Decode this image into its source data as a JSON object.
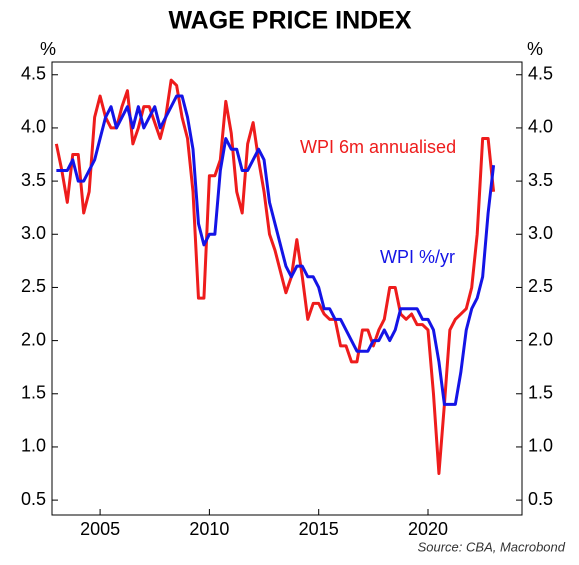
{
  "chart_data": {
    "type": "line",
    "title": "WAGE PRICE INDEX",
    "y_unit_left": "%",
    "y_unit_right": "%",
    "source": "Source: CBA, Macrobond",
    "annotations": [
      "WPI 6m annualised",
      "WPI %/yr"
    ],
    "x": [
      2003,
      2003.25,
      2003.5,
      2003.75,
      2004,
      2004.25,
      2004.5,
      2004.75,
      2005,
      2005.25,
      2005.5,
      2005.75,
      2006,
      2006.25,
      2006.5,
      2006.75,
      2007,
      2007.25,
      2007.5,
      2007.75,
      2008,
      2008.25,
      2008.5,
      2008.75,
      2009,
      2009.25,
      2009.5,
      2009.75,
      2010,
      2010.25,
      2010.5,
      2010.75,
      2011,
      2011.25,
      2011.5,
      2011.75,
      2012,
      2012.25,
      2012.5,
      2012.75,
      2013,
      2013.25,
      2013.5,
      2013.75,
      2014,
      2014.25,
      2014.5,
      2014.75,
      2015,
      2015.25,
      2015.5,
      2015.75,
      2016,
      2016.25,
      2016.5,
      2016.75,
      2017,
      2017.25,
      2017.5,
      2017.75,
      2018,
      2018.25,
      2018.5,
      2018.75,
      2019,
      2019.25,
      2019.5,
      2019.75,
      2020,
      2020.25,
      2020.5,
      2020.75,
      2021,
      2021.25,
      2021.5,
      2021.75,
      2022,
      2022.25,
      2022.5,
      2022.75,
      2023
    ],
    "series": [
      {
        "name": "WPI 6m annualised",
        "color": "#ee1c1c",
        "values": [
          3.85,
          3.6,
          3.3,
          3.75,
          3.75,
          3.2,
          3.4,
          4.1,
          4.3,
          4.1,
          4.0,
          4.0,
          4.2,
          4.35,
          3.85,
          4.0,
          4.2,
          4.2,
          4.05,
          3.9,
          4.1,
          4.45,
          4.4,
          4.1,
          3.9,
          3.4,
          2.4,
          2.4,
          3.55,
          3.55,
          3.7,
          4.25,
          3.95,
          3.4,
          3.2,
          3.85,
          4.05,
          3.7,
          3.4,
          3.0,
          2.85,
          2.65,
          2.45,
          2.6,
          2.95,
          2.6,
          2.2,
          2.35,
          2.35,
          2.25,
          2.2,
          2.2,
          1.95,
          1.95,
          1.8,
          1.8,
          2.1,
          2.1,
          1.95,
          2.1,
          2.2,
          2.5,
          2.5,
          2.25,
          2.2,
          2.25,
          2.15,
          2.15,
          2.1,
          1.5,
          0.75,
          1.4,
          2.1,
          2.2,
          2.25,
          2.3,
          2.5,
          3.0,
          3.9,
          3.9,
          3.4
        ]
      },
      {
        "name": "WPI %/yr",
        "color": "#1414e6",
        "values": [
          3.6,
          3.6,
          3.6,
          3.7,
          3.5,
          3.5,
          3.6,
          3.7,
          3.9,
          4.1,
          4.2,
          4.0,
          4.1,
          4.2,
          4.0,
          4.2,
          4.0,
          4.1,
          4.2,
          4.0,
          4.1,
          4.2,
          4.3,
          4.3,
          4.1,
          3.8,
          3.1,
          2.9,
          3.0,
          3.0,
          3.6,
          3.9,
          3.8,
          3.8,
          3.6,
          3.6,
          3.7,
          3.8,
          3.7,
          3.3,
          3.1,
          2.9,
          2.7,
          2.6,
          2.7,
          2.7,
          2.6,
          2.6,
          2.5,
          2.3,
          2.3,
          2.2,
          2.2,
          2.1,
          2.0,
          1.9,
          1.9,
          1.9,
          2.0,
          2.0,
          2.1,
          2.0,
          2.1,
          2.3,
          2.3,
          2.3,
          2.3,
          2.2,
          2.2,
          2.1,
          1.8,
          1.4,
          1.4,
          1.4,
          1.7,
          2.1,
          2.3,
          2.4,
          2.6,
          3.2,
          3.65
        ]
      }
    ],
    "xlim": [
      2002.8,
      2024.3
    ],
    "xticks": [
      2005,
      2010,
      2015,
      2020
    ],
    "ylim": [
      0.36,
      4.62
    ],
    "yticks": [
      0.5,
      {
        "value": 1,
        "label": "1.0"
      },
      1.5,
      {
        "value": 2,
        "label": "2.0"
      },
      2.5,
      {
        "value": 3,
        "label": "3.0"
      },
      3.5,
      {
        "value": 4,
        "label": "4.0"
      },
      4.5
    ],
    "grid": false
  }
}
